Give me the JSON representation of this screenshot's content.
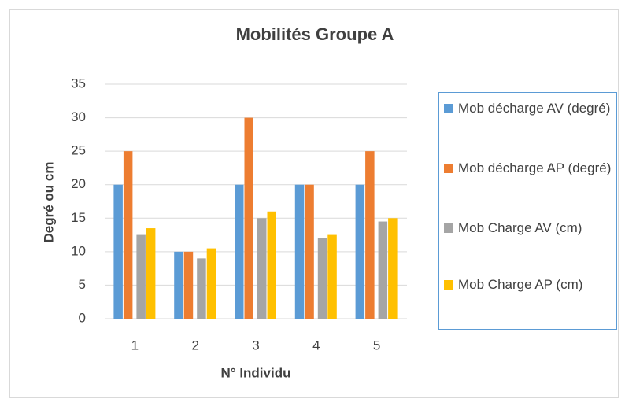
{
  "chart_data": {
    "type": "bar",
    "title": "Mobilités Groupe A",
    "x_label": "N° Individu",
    "y_label": "Degré ou cm",
    "categories": [
      "1",
      "2",
      "3",
      "4",
      "5"
    ],
    "series": [
      {
        "name": "Mob décharge AV (degré)",
        "color": "#5b9bd5",
        "values": [
          20,
          10,
          20,
          20,
          20
        ]
      },
      {
        "name": "Mob décharge AP (degré)",
        "color": "#ed7d31",
        "values": [
          25,
          10,
          30,
          20,
          25
        ]
      },
      {
        "name": "Mob Charge AV (cm)",
        "color": "#a5a5a5",
        "values": [
          12.5,
          9,
          15,
          12,
          14.5
        ]
      },
      {
        "name": "Mob Charge AP (cm)",
        "color": "#ffc000",
        "values": [
          13.5,
          10.5,
          16,
          12.5,
          15
        ]
      }
    ],
    "ylim": [
      0,
      35
    ],
    "yticks": [
      0,
      5,
      10,
      15,
      20,
      25,
      30,
      35
    ],
    "grid": true,
    "legend": "right"
  }
}
